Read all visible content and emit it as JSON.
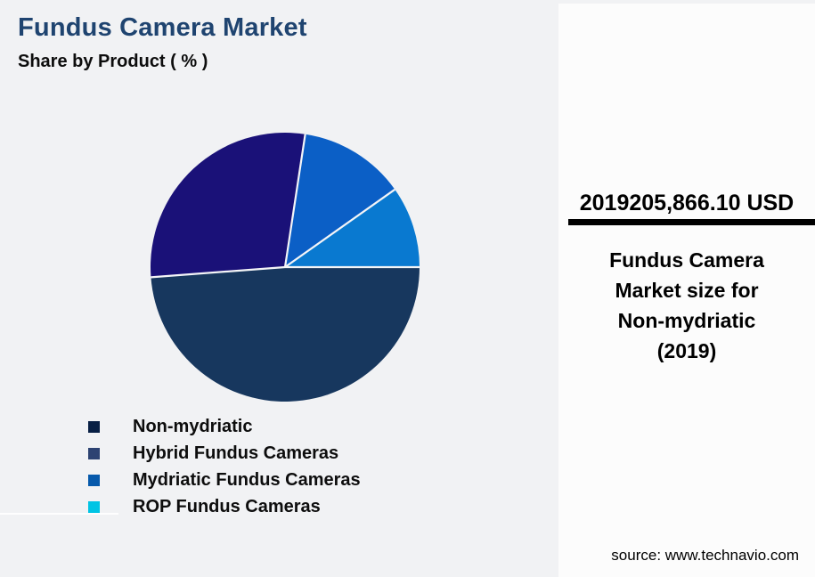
{
  "header": {
    "title": "Fundus Camera Market",
    "subtitle": "Share by Product ( % )"
  },
  "panel": {
    "year": "2019",
    "value": "205,866.10 USD",
    "caption_lines": [
      "Fundus Camera",
      "Market size for",
      "Non-mydriatic",
      "(2019)"
    ],
    "source": "source: www.technavio.com"
  },
  "colors": {
    "page_background": "#F1F2F4",
    "panel_background": "#FCFCFC",
    "title_text": "#1F4470",
    "divider": "#000000",
    "slice_separator": "#F4F5F7"
  },
  "chart_data": {
    "type": "pie",
    "title": "Fundus Camera Market",
    "subtitle": "Share by Product ( % )",
    "unit": "%",
    "start_angle_compass": 90,
    "direction": "clockwise",
    "legend_position": "bottom-left",
    "series": [
      {
        "name": "Non-mydriatic",
        "value": 48.8,
        "slice_color": "#17375E",
        "legend_color": "#081F44"
      },
      {
        "name": "Hybrid Fundus Cameras",
        "value": 28.6,
        "slice_color": "#1A1178",
        "legend_color": "#2D4372"
      },
      {
        "name": "Mydriatic Fundus Cameras",
        "value": 12.8,
        "slice_color": "#0B5FC6",
        "legend_color": "#0659AB"
      },
      {
        "name": "ROP Fundus Cameras",
        "value": 9.8,
        "slice_color": "#0979D0",
        "legend_color": "#00C4E4"
      }
    ]
  }
}
